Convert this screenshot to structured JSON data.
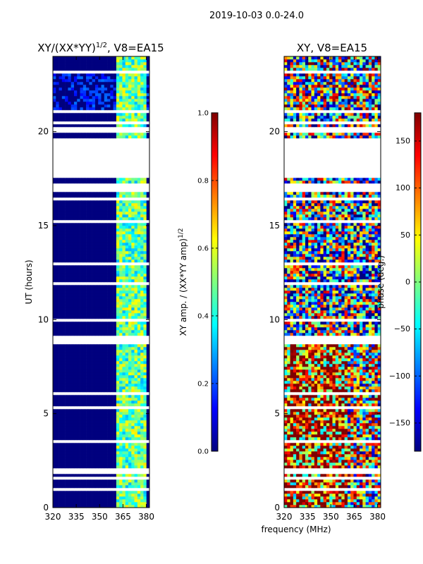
{
  "suptitle": "2019-10-03 0.0-24.0",
  "colors": {
    "jet": [
      "#00007f",
      "#0000ff",
      "#007fff",
      "#00ffff",
      "#7fff7f",
      "#ffff00",
      "#ff7f00",
      "#ff0000",
      "#7f0000"
    ],
    "gap": "#ffffff",
    "axis": "#000000"
  },
  "chart_data": [
    {
      "type": "heatmap",
      "title_main": "XY/(XX*YY)",
      "title_sup": "1/2",
      "title_tail": ", V8=EA15",
      "xlabel": "",
      "ylabel": "UT (hours)",
      "xlim": [
        320,
        382
      ],
      "ylim": [
        0,
        24
      ],
      "xticks": [
        "320",
        "335",
        "350",
        "365",
        "380"
      ],
      "xtick_values": [
        320,
        335,
        350,
        365,
        380
      ],
      "yticks": [
        "0",
        "5",
        "10",
        "15",
        "20"
      ],
      "ytick_values": [
        0,
        5,
        10,
        15,
        20
      ],
      "colorbar": {
        "label_main": "XY amp. / (XX*YY amp)",
        "label_sup": "1/2",
        "ticks": [
          "0.0",
          "0.2",
          "0.4",
          "0.6",
          "0.8",
          "1.0"
        ],
        "tick_values": [
          0.0,
          0.2,
          0.4,
          0.6,
          0.8,
          1.0
        ],
        "range": [
          0.0,
          1.0
        ]
      },
      "active_band_mhz": [
        361,
        380
      ],
      "flagged_hours": [
        [
          0.25,
          0.35
        ],
        [
          0.9,
          1.1
        ],
        [
          1.45,
          1.6
        ],
        [
          1.85,
          2.1
        ],
        [
          3.5,
          3.6
        ],
        [
          5.25,
          5.4
        ],
        [
          6.0,
          6.1
        ],
        [
          8.75,
          9.2
        ],
        [
          9.25,
          9.3
        ],
        [
          9.9,
          10.1
        ],
        [
          10.6,
          10.7
        ],
        [
          11.85,
          11.95
        ],
        [
          12.9,
          13.1
        ],
        [
          15.2,
          15.3
        ],
        [
          16.3,
          16.5
        ],
        [
          16.8,
          17.3
        ],
        [
          17.6,
          19.6
        ],
        [
          20.0,
          20.2
        ],
        [
          20.4,
          20.6
        ],
        [
          20.95,
          21.15
        ],
        [
          23.15,
          23.3
        ]
      ]
    },
    {
      "type": "heatmap",
      "title_main": "XY, V8=EA15",
      "xlabel": "frequency (MHz)",
      "ylabel": "",
      "xlim": [
        320,
        382
      ],
      "ylim": [
        0,
        24
      ],
      "xticks": [
        "320",
        "335",
        "350",
        "365",
        "380"
      ],
      "xtick_values": [
        320,
        335,
        350,
        365,
        380
      ],
      "yticks": [
        "0",
        "5",
        "10",
        "15",
        "20"
      ],
      "ytick_values": [
        0,
        5,
        10,
        15,
        20
      ],
      "colorbar": {
        "label_main": "phase (deg.)",
        "ticks": [
          "−150",
          "−100",
          "−50",
          "0",
          "50",
          "100",
          "150"
        ],
        "tick_values": [
          -150,
          -100,
          -50,
          0,
          50,
          100,
          150
        ],
        "range": [
          -180,
          180
        ]
      },
      "flagged_hours": [
        [
          0.25,
          0.35
        ],
        [
          0.9,
          1.1
        ],
        [
          1.45,
          1.6
        ],
        [
          1.85,
          2.1
        ],
        [
          3.5,
          3.6
        ],
        [
          5.25,
          5.4
        ],
        [
          6.0,
          6.1
        ],
        [
          8.75,
          9.2
        ],
        [
          9.25,
          9.3
        ],
        [
          9.9,
          10.1
        ],
        [
          10.6,
          10.7
        ],
        [
          11.85,
          11.95
        ],
        [
          12.9,
          13.1
        ],
        [
          15.2,
          15.3
        ],
        [
          16.3,
          16.5
        ],
        [
          16.8,
          17.3
        ],
        [
          17.6,
          19.6
        ],
        [
          20.0,
          20.2
        ],
        [
          20.4,
          20.6
        ],
        [
          20.95,
          21.15
        ],
        [
          23.15,
          23.3
        ]
      ]
    }
  ]
}
